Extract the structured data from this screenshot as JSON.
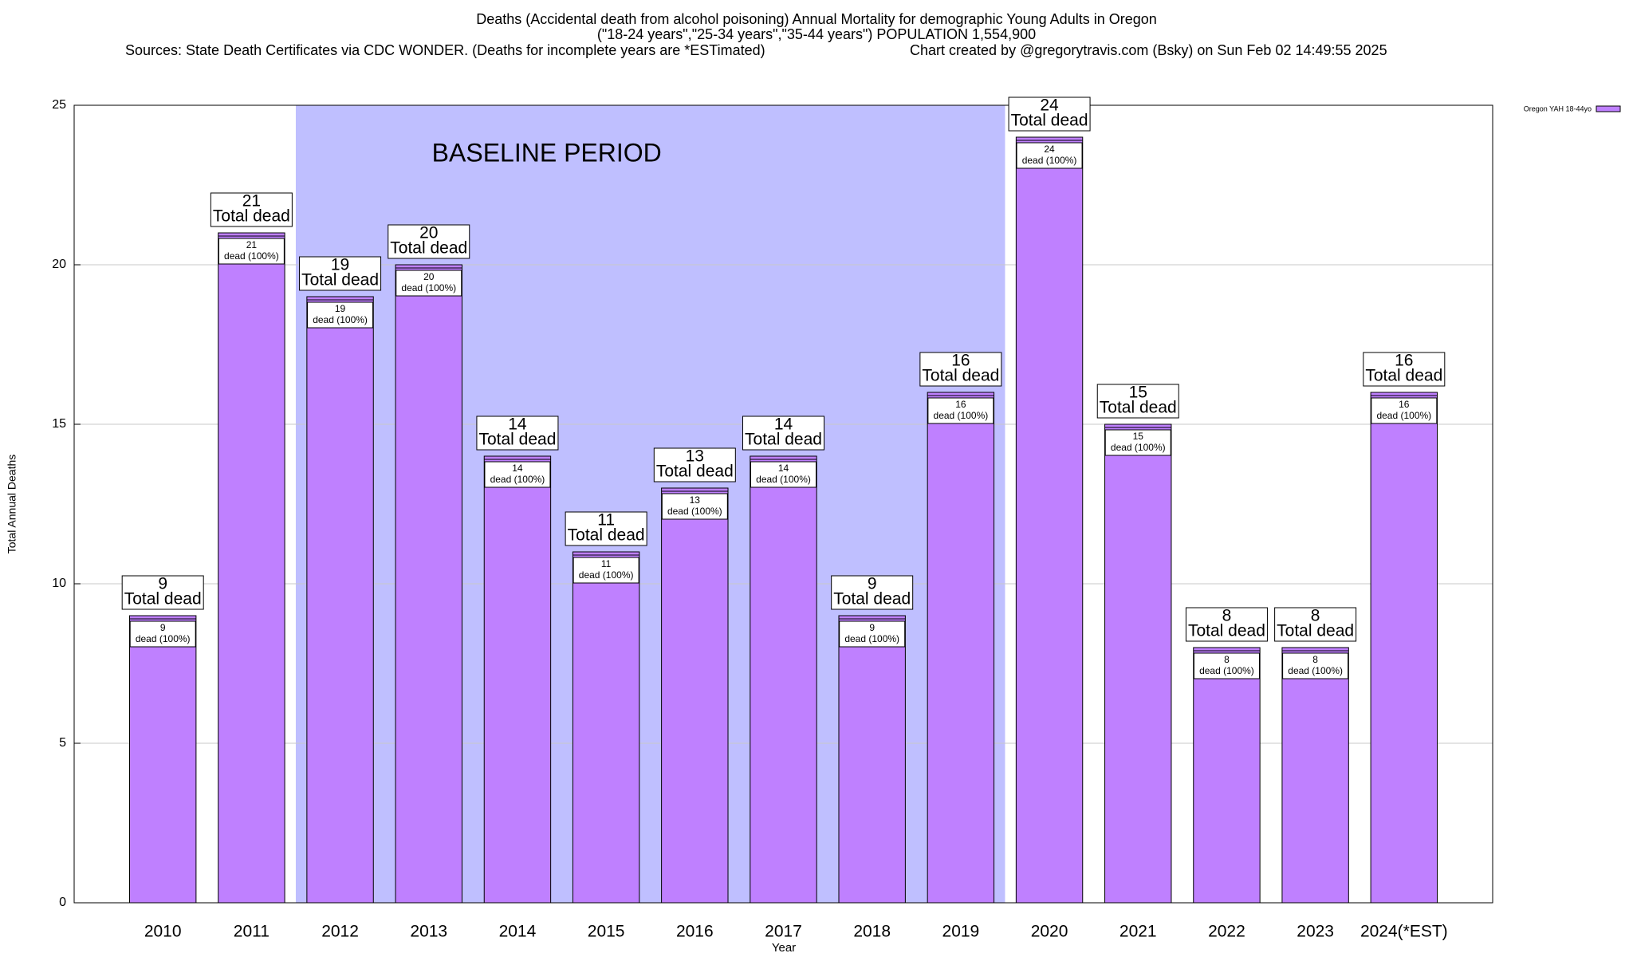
{
  "chart_data": {
    "type": "bar",
    "title": "Deaths (Accidental death from alcohol poisoning) Annual Mortality for demographic Young Adults in Oregon",
    "subtitle": "(\"18-24 years\",\"25-34 years\",\"35-44 years\") POPULATION 1,554,900",
    "source": "Sources: State Death Certificates via CDC WONDER. (Deaths for incomplete years are *ESTimated)",
    "credit": "Chart created by @gregorytravis.com (Bsky) on Sun Feb 02 14:49:55 2025",
    "x_label": "Year",
    "y_label": "Total Annual Deaths",
    "categories": [
      "2010",
      "2011",
      "2012",
      "2013",
      "2014",
      "2015",
      "2016",
      "2017",
      "2018",
      "2019",
      "2020",
      "2021",
      "2022",
      "2023",
      "2024(*EST)"
    ],
    "series": [
      {
        "name": "Oregon YAH 18-44yo",
        "color": "#bf80ff",
        "values": [
          9,
          21,
          19,
          20,
          14,
          11,
          13,
          14,
          9,
          16,
          24,
          15,
          8,
          8,
          16
        ]
      }
    ],
    "total_label": "Total dead",
    "segment_label": "dead (100%)",
    "baseline": {
      "label": "BASELINE PERIOD",
      "from": "2012",
      "to": "2019",
      "color": "#bfbfff"
    },
    "ylim": [
      0,
      25
    ],
    "yticks": [
      0,
      5,
      10,
      15,
      20,
      25
    ],
    "grid": true,
    "legend": "top-right"
  }
}
